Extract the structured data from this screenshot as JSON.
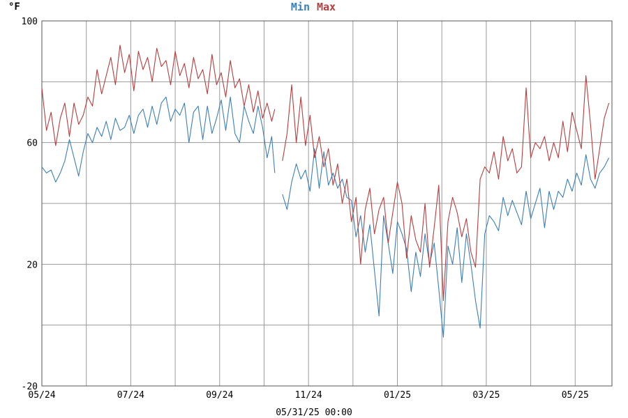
{
  "chart_data": {
    "type": "line",
    "ylabel": "°F",
    "ylim": [
      -20,
      100
    ],
    "yticks": [
      {
        "value": -20,
        "label": "-20"
      },
      {
        "value": 0,
        "label": ""
      },
      {
        "value": 20,
        "label": "20"
      },
      {
        "value": 40,
        "label": ""
      },
      {
        "value": 60,
        "label": "60"
      },
      {
        "value": 80,
        "label": ""
      },
      {
        "value": 100,
        "label": "100"
      }
    ],
    "x_range_days": [
      0,
      372
    ],
    "xticks": [
      {
        "day": 0,
        "label": "05/24"
      },
      {
        "day": 29,
        "label": ""
      },
      {
        "day": 58,
        "label": "07/24"
      },
      {
        "day": 87,
        "label": ""
      },
      {
        "day": 116,
        "label": "09/24"
      },
      {
        "day": 145,
        "label": ""
      },
      {
        "day": 174,
        "label": "11/24"
      },
      {
        "day": 203,
        "label": ""
      },
      {
        "day": 232,
        "label": "01/25"
      },
      {
        "day": 261,
        "label": ""
      },
      {
        "day": 290,
        "label": "03/25"
      },
      {
        "day": 319,
        "label": ""
      },
      {
        "day": 348,
        "label": "05/25"
      }
    ],
    "grid": true,
    "legend_position": "top-center",
    "timestamp": "05/31/25 00:00",
    "gap_days": [
      152,
      157
    ],
    "series": [
      {
        "name": "Min",
        "color": "#3a7fb8",
        "points": [
          [
            0,
            52
          ],
          [
            3,
            50
          ],
          [
            6,
            51
          ],
          [
            9,
            47
          ],
          [
            12,
            50
          ],
          [
            15,
            54
          ],
          [
            18,
            61
          ],
          [
            21,
            55
          ],
          [
            24,
            49
          ],
          [
            27,
            57
          ],
          [
            30,
            63
          ],
          [
            33,
            60
          ],
          [
            36,
            65
          ],
          [
            39,
            62
          ],
          [
            42,
            67
          ],
          [
            45,
            61
          ],
          [
            48,
            68
          ],
          [
            51,
            64
          ],
          [
            54,
            65
          ],
          [
            57,
            69
          ],
          [
            60,
            63
          ],
          [
            63,
            69
          ],
          [
            66,
            71
          ],
          [
            69,
            65
          ],
          [
            72,
            72
          ],
          [
            75,
            66
          ],
          [
            78,
            73
          ],
          [
            81,
            75
          ],
          [
            84,
            67
          ],
          [
            87,
            71
          ],
          [
            90,
            69
          ],
          [
            93,
            73
          ],
          [
            96,
            60
          ],
          [
            99,
            70
          ],
          [
            102,
            72
          ],
          [
            105,
            61
          ],
          [
            108,
            72
          ],
          [
            111,
            63
          ],
          [
            114,
            68
          ],
          [
            117,
            74
          ],
          [
            120,
            64
          ],
          [
            123,
            75
          ],
          [
            126,
            63
          ],
          [
            129,
            60
          ],
          [
            132,
            72
          ],
          [
            135,
            67
          ],
          [
            138,
            63
          ],
          [
            141,
            72
          ],
          [
            144,
            65
          ],
          [
            147,
            55
          ],
          [
            150,
            62
          ],
          [
            152,
            50
          ],
          [
            157,
            43
          ],
          [
            160,
            38
          ],
          [
            163,
            47
          ],
          [
            166,
            53
          ],
          [
            169,
            48
          ],
          [
            172,
            51
          ],
          [
            175,
            44
          ],
          [
            178,
            58
          ],
          [
            181,
            45
          ],
          [
            184,
            57
          ],
          [
            187,
            46
          ],
          [
            190,
            50
          ],
          [
            193,
            45
          ],
          [
            196,
            48
          ],
          [
            199,
            42
          ],
          [
            202,
            41
          ],
          [
            205,
            29
          ],
          [
            208,
            36
          ],
          [
            211,
            24
          ],
          [
            214,
            33
          ],
          [
            217,
            18
          ],
          [
            220,
            3
          ],
          [
            223,
            36
          ],
          [
            226,
            27
          ],
          [
            229,
            17
          ],
          [
            232,
            34
          ],
          [
            235,
            30
          ],
          [
            238,
            25
          ],
          [
            241,
            11
          ],
          [
            244,
            24
          ],
          [
            247,
            16
          ],
          [
            250,
            30
          ],
          [
            253,
            20
          ],
          [
            256,
            27
          ],
          [
            259,
            12
          ],
          [
            262,
            -4
          ],
          [
            265,
            26
          ],
          [
            268,
            20
          ],
          [
            271,
            32
          ],
          [
            274,
            14
          ],
          [
            277,
            30
          ],
          [
            280,
            20
          ],
          [
            283,
            8
          ],
          [
            286,
            -1
          ],
          [
            289,
            30
          ],
          [
            292,
            36
          ],
          [
            295,
            34
          ],
          [
            298,
            31
          ],
          [
            301,
            42
          ],
          [
            304,
            36
          ],
          [
            307,
            41
          ],
          [
            310,
            37
          ],
          [
            313,
            33
          ],
          [
            316,
            44
          ],
          [
            319,
            35
          ],
          [
            322,
            40
          ],
          [
            325,
            45
          ],
          [
            328,
            32
          ],
          [
            331,
            44
          ],
          [
            334,
            38
          ],
          [
            337,
            44
          ],
          [
            340,
            42
          ],
          [
            343,
            48
          ],
          [
            346,
            44
          ],
          [
            349,
            50
          ],
          [
            352,
            46
          ],
          [
            355,
            56
          ],
          [
            358,
            48
          ],
          [
            361,
            45
          ],
          [
            364,
            50
          ],
          [
            367,
            52
          ],
          [
            370,
            55
          ]
        ]
      },
      {
        "name": "Max",
        "color": "#b83c3c",
        "points": [
          [
            0,
            78
          ],
          [
            3,
            64
          ],
          [
            6,
            70
          ],
          [
            9,
            59
          ],
          [
            12,
            68
          ],
          [
            15,
            73
          ],
          [
            18,
            62
          ],
          [
            21,
            73
          ],
          [
            24,
            66
          ],
          [
            27,
            69
          ],
          [
            30,
            75
          ],
          [
            33,
            72
          ],
          [
            36,
            84
          ],
          [
            39,
            76
          ],
          [
            42,
            82
          ],
          [
            45,
            88
          ],
          [
            48,
            79
          ],
          [
            51,
            92
          ],
          [
            54,
            83
          ],
          [
            57,
            89
          ],
          [
            60,
            77
          ],
          [
            63,
            90
          ],
          [
            66,
            84
          ],
          [
            69,
            88
          ],
          [
            72,
            80
          ],
          [
            75,
            91
          ],
          [
            78,
            85
          ],
          [
            81,
            87
          ],
          [
            84,
            79
          ],
          [
            87,
            90
          ],
          [
            90,
            82
          ],
          [
            93,
            86
          ],
          [
            96,
            78
          ],
          [
            99,
            88
          ],
          [
            102,
            81
          ],
          [
            105,
            84
          ],
          [
            108,
            76
          ],
          [
            111,
            89
          ],
          [
            114,
            79
          ],
          [
            117,
            83
          ],
          [
            120,
            75
          ],
          [
            123,
            87
          ],
          [
            126,
            78
          ],
          [
            129,
            81
          ],
          [
            132,
            72
          ],
          [
            135,
            79
          ],
          [
            138,
            70
          ],
          [
            141,
            77
          ],
          [
            144,
            68
          ],
          [
            147,
            73
          ],
          [
            150,
            67
          ],
          [
            152,
            71
          ],
          [
            157,
            54
          ],
          [
            160,
            63
          ],
          [
            163,
            79
          ],
          [
            166,
            60
          ],
          [
            169,
            75
          ],
          [
            172,
            59
          ],
          [
            175,
            69
          ],
          [
            178,
            55
          ],
          [
            181,
            62
          ],
          [
            184,
            52
          ],
          [
            187,
            58
          ],
          [
            190,
            46
          ],
          [
            193,
            53
          ],
          [
            196,
            40
          ],
          [
            199,
            48
          ],
          [
            202,
            34
          ],
          [
            205,
            42
          ],
          [
            208,
            20
          ],
          [
            211,
            38
          ],
          [
            214,
            45
          ],
          [
            217,
            30
          ],
          [
            220,
            38
          ],
          [
            223,
            42
          ],
          [
            226,
            27
          ],
          [
            229,
            37
          ],
          [
            232,
            47
          ],
          [
            235,
            40
          ],
          [
            238,
            22
          ],
          [
            241,
            36
          ],
          [
            244,
            28
          ],
          [
            247,
            24
          ],
          [
            250,
            40
          ],
          [
            253,
            19
          ],
          [
            256,
            32
          ],
          [
            259,
            46
          ],
          [
            262,
            8
          ],
          [
            265,
            34
          ],
          [
            268,
            42
          ],
          [
            271,
            37
          ],
          [
            274,
            29
          ],
          [
            277,
            35
          ],
          [
            280,
            24
          ],
          [
            283,
            19
          ],
          [
            286,
            48
          ],
          [
            289,
            52
          ],
          [
            292,
            50
          ],
          [
            295,
            57
          ],
          [
            298,
            48
          ],
          [
            301,
            62
          ],
          [
            304,
            54
          ],
          [
            307,
            58
          ],
          [
            310,
            50
          ],
          [
            313,
            52
          ],
          [
            316,
            78
          ],
          [
            319,
            55
          ],
          [
            322,
            60
          ],
          [
            325,
            58
          ],
          [
            328,
            62
          ],
          [
            331,
            54
          ],
          [
            334,
            60
          ],
          [
            337,
            55
          ],
          [
            340,
            67
          ],
          [
            343,
            57
          ],
          [
            346,
            70
          ],
          [
            349,
            64
          ],
          [
            352,
            58
          ],
          [
            355,
            82
          ],
          [
            358,
            66
          ],
          [
            361,
            48
          ],
          [
            364,
            58
          ],
          [
            367,
            68
          ],
          [
            370,
            73
          ]
        ]
      }
    ]
  }
}
